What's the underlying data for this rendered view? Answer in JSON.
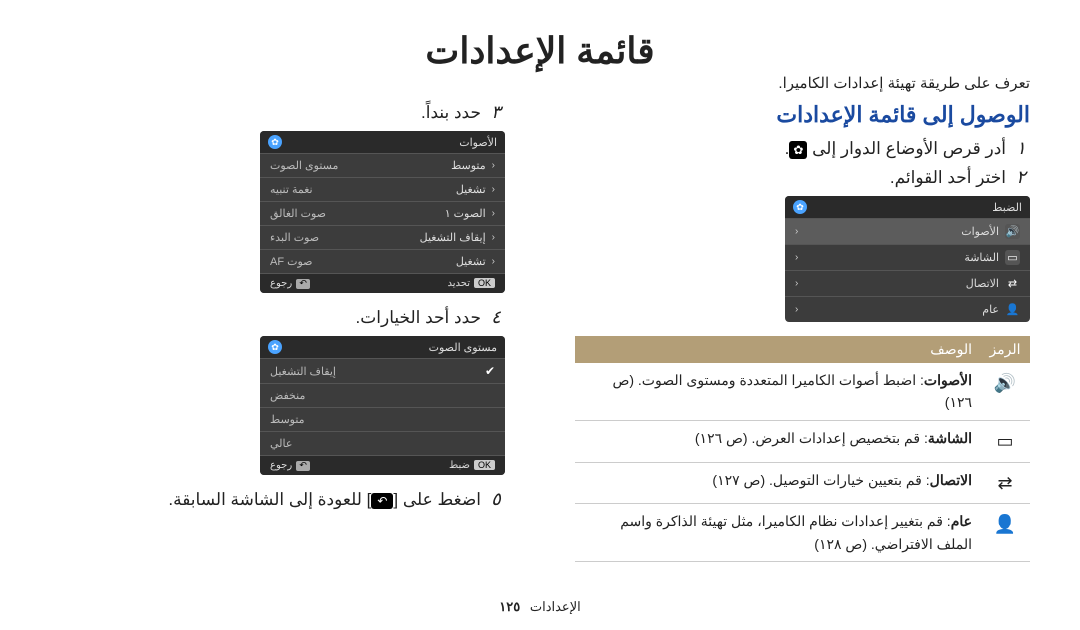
{
  "title": "قائمة الإعدادات",
  "subtitle": "تعرف على طريقة تهيئة إعدادات الكاميرا.",
  "right": {
    "section_head": "الوصول إلى قائمة الإعدادات",
    "step1_num": "١",
    "step1_text": "أدر قرص الأوضاع الدوار إلى",
    "step2_num": "٢",
    "step2_text": "اختر أحد القوائم.",
    "panel1": {
      "head": "الضبط",
      "rows": [
        {
          "icon": "vol",
          "label": "الأصوات",
          "active": true
        },
        {
          "icon": "screen",
          "label": "الشاشة"
        },
        {
          "icon": "conn",
          "label": "الاتصال"
        },
        {
          "icon": "user",
          "label": "عام"
        }
      ]
    },
    "table": {
      "h_icon": "الرمز",
      "h_desc": "الوصف",
      "rows": [
        {
          "icon": "vol",
          "lbl": "الأصوات",
          "txt": ": اضبط أصوات الكاميرا المتعددة ومستوى الصوت. (ص ١٢٦)"
        },
        {
          "icon": "screen",
          "lbl": "الشاشة",
          "txt": ": قم بتخصيص إعدادات العرض. (ص ١٢٦)"
        },
        {
          "icon": "conn",
          "lbl": "الاتصال",
          "txt": ": قم بتعيين خيارات التوصيل. (ص ١٢٧)"
        },
        {
          "icon": "user",
          "lbl": "عام",
          "txt": ": قم بتغيير إعدادات نظام الكاميرا، مثل تهيئة الذاكرة واسم الملف الافتراضي. (ص ١٢٨)"
        }
      ]
    }
  },
  "left": {
    "step3_num": "٣",
    "step3_text": "حدد بنداً.",
    "panel2": {
      "head": "الأصوات",
      "rows": [
        {
          "label": "مستوى الصوت",
          "value": "متوسط"
        },
        {
          "label": "نغمة تنبيه",
          "value": "تشغيل"
        },
        {
          "label": "صوت الغالق",
          "value": "الصوت ١"
        },
        {
          "label": "صوت البدء",
          "value": "إيقاف التشغيل"
        },
        {
          "label": "صوت AF",
          "value": "تشغيل"
        }
      ],
      "foot_ok": "تحديد",
      "foot_back": "رجوع"
    },
    "step4_num": "٤",
    "step4_text": "حدد أحد الخيارات.",
    "panel3": {
      "head": "مستوى الصوت",
      "rows": [
        {
          "label": "إيقاف التشغيل",
          "checked": true
        },
        {
          "label": "منخفض"
        },
        {
          "label": "متوسط"
        },
        {
          "label": "عالي"
        }
      ],
      "foot_ok": "ضبط",
      "foot_back": "رجوع"
    },
    "step5_num": "٥",
    "step5_pre": "اضغط على",
    "step5_post": "للعودة إلى الشاشة السابقة."
  },
  "footer": {
    "label": "الإعدادات",
    "page": "١٢٥"
  },
  "icons": {
    "vol": "🔊",
    "screen": "▭",
    "conn": "⇄",
    "user": "👤"
  },
  "colors": {
    "accent": "#1a4aa0",
    "table_head": "#b39e77"
  }
}
